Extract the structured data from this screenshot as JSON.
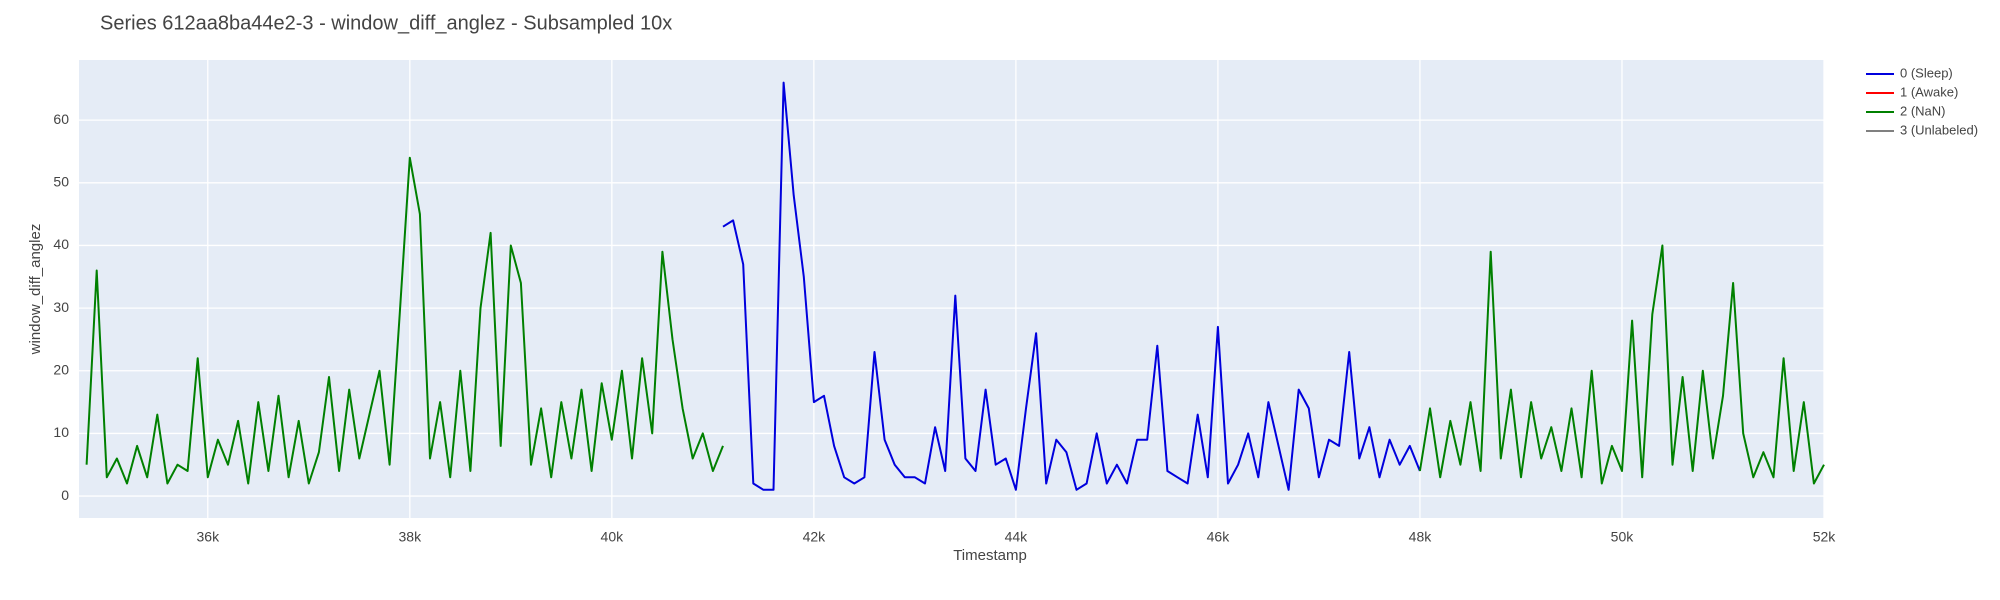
{
  "chart_data": {
    "type": "line",
    "title": "Series 612aa8ba44e2-3 - window_diff_anglez - Subsampled 10x",
    "xlabel": "Timestamp",
    "ylabel": "window_diff_anglez",
    "xlim": [
      34725,
      52000
    ],
    "ylim": [
      -3.5,
      69.6
    ],
    "xticks": [
      {
        "value": 36000,
        "label": "36k"
      },
      {
        "value": 38000,
        "label": "38k"
      },
      {
        "value": 40000,
        "label": "40k"
      },
      {
        "value": 42000,
        "label": "42k"
      },
      {
        "value": 44000,
        "label": "44k"
      },
      {
        "value": 46000,
        "label": "46k"
      },
      {
        "value": 48000,
        "label": "48k"
      },
      {
        "value": 50000,
        "label": "50k"
      },
      {
        "value": 52000,
        "label": "52k"
      }
    ],
    "yticks": [
      0,
      10,
      20,
      30,
      40,
      50,
      60
    ],
    "grid": true,
    "legend": "right",
    "series": [
      {
        "name": "0 (Sleep)",
        "color": "#0000dd",
        "x": [
          41100,
          41200,
          41300,
          41400,
          41500,
          41600,
          41700,
          41800,
          41900,
          42000,
          42100,
          42200,
          42300,
          42400,
          42500,
          42600,
          42700,
          42800,
          42900,
          43000,
          43100,
          43200,
          43300,
          43400,
          43500,
          43600,
          43700,
          43800,
          43900,
          44000,
          44100,
          44200,
          44300,
          44400,
          44500,
          44600,
          44700,
          44800,
          44900,
          45000,
          45100,
          45200,
          45300,
          45400,
          45500,
          45600,
          45700,
          45800,
          45900,
          46000,
          46100,
          46200,
          46300,
          46400,
          46500,
          46600,
          46700,
          46800,
          46900,
          47000,
          47100,
          47200,
          47300,
          47400,
          47500,
          47600,
          47700,
          47800,
          47900,
          48000
        ],
        "values": [
          43,
          44,
          37,
          2,
          1,
          1,
          66,
          48,
          35,
          15,
          16,
          8,
          3,
          2,
          3,
          23,
          9,
          5,
          3,
          3,
          2,
          11,
          4,
          32,
          6,
          4,
          17,
          5,
          6,
          1,
          14,
          26,
          2,
          9,
          7,
          1,
          2,
          10,
          2,
          5,
          2,
          9,
          9,
          24,
          4,
          3,
          2,
          13,
          3,
          27,
          2,
          5,
          10,
          3,
          15,
          8,
          1,
          17,
          14,
          3,
          9,
          8,
          23,
          6,
          11,
          3,
          9,
          5,
          8,
          4
        ]
      },
      {
        "name": "1 (Awake)",
        "color": "#ff0000",
        "x": [],
        "values": []
      },
      {
        "name": "2 (NaN)",
        "color": "#008000",
        "x": [
          34800,
          34900,
          35000,
          35100,
          35200,
          35300,
          35400,
          35500,
          35600,
          35700,
          35800,
          35900,
          36000,
          36100,
          36200,
          36300,
          36400,
          36500,
          36600,
          36700,
          36800,
          36900,
          37000,
          37100,
          37200,
          37300,
          37400,
          37500,
          37600,
          37700,
          37800,
          37900,
          38000,
          38100,
          38200,
          38300,
          38400,
          38500,
          38600,
          38700,
          38800,
          38900,
          39000,
          39100,
          39200,
          39300,
          39400,
          39500,
          39600,
          39700,
          39800,
          39900,
          40000,
          40100,
          40200,
          40300,
          40400,
          40500,
          40600,
          40700,
          40800,
          40900,
          41000,
          41100,
          44000,
          48000,
          48100,
          48200,
          48300,
          48400,
          48500,
          48600,
          48700,
          48800,
          48900,
          49000,
          49100,
          49200,
          49300,
          49400,
          49500,
          49600,
          49700,
          49800,
          49900,
          50000,
          50100,
          50200,
          50300,
          50400,
          50500,
          50600,
          50700,
          50800,
          50900,
          51000,
          51100,
          51200,
          51300,
          51400,
          51500,
          51600,
          51700,
          51800,
          51900,
          52000
        ],
        "values": [
          5,
          36,
          3,
          6,
          2,
          8,
          3,
          13,
          2,
          5,
          4,
          22,
          3,
          9,
          5,
          12,
          2,
          15,
          4,
          16,
          3,
          12,
          2,
          7,
          19,
          4,
          17,
          6,
          13,
          20,
          5,
          29,
          54,
          45,
          6,
          15,
          3,
          20,
          4,
          30,
          42,
          8,
          40,
          34,
          5,
          14,
          3,
          15,
          6,
          17,
          4,
          18,
          9,
          20,
          6,
          22,
          10,
          39,
          25,
          14,
          6,
          10,
          4,
          8,
          null,
          4,
          14,
          3,
          12,
          5,
          15,
          4,
          39,
          6,
          17,
          3,
          15,
          6,
          11,
          4,
          14,
          3,
          20,
          2,
          8,
          4,
          28,
          3,
          29,
          40,
          5,
          19,
          4,
          20,
          6,
          16,
          34,
          10,
          3,
          7,
          3,
          22,
          4,
          15,
          2,
          5
        ]
      },
      {
        "name": "3 (Unlabeled)",
        "color": "#808080",
        "x": [],
        "values": []
      }
    ]
  }
}
